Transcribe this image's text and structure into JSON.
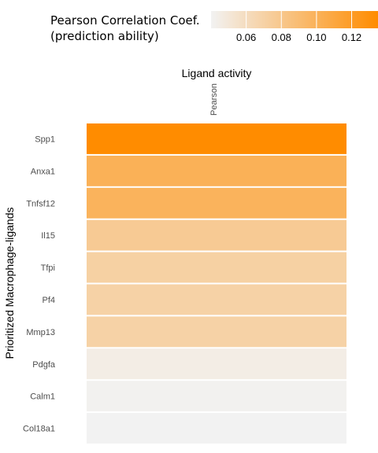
{
  "chart_data": {
    "type": "heatmap",
    "title": "Ligand activity",
    "column": "Pearson",
    "ylabel": "Prioritized Macrophage-ligands",
    "rows": [
      "Spp1",
      "Anxa1",
      "Tnfsf12",
      "Il15",
      "Tfpi",
      "Pf4",
      "Mmp13",
      "Pdgfa",
      "Calm1",
      "Col18a1"
    ],
    "values": [
      0.135,
      0.101,
      0.099,
      0.077,
      0.071,
      0.07,
      0.07,
      0.045,
      0.041,
      0.04
    ],
    "legend": {
      "title_line1": "Pearson Correlation Coef.",
      "title_line2": "(prediction ability)",
      "ticks": [
        0.06,
        0.08,
        0.1,
        0.12
      ],
      "tick_labels": [
        "0.06",
        "0.08",
        "0.10",
        "0.12"
      ],
      "range": [
        0.04,
        0.135
      ],
      "position": "top",
      "low_color": "#f2f2f2",
      "high_color": "#ff8c00"
    },
    "grid": false
  }
}
